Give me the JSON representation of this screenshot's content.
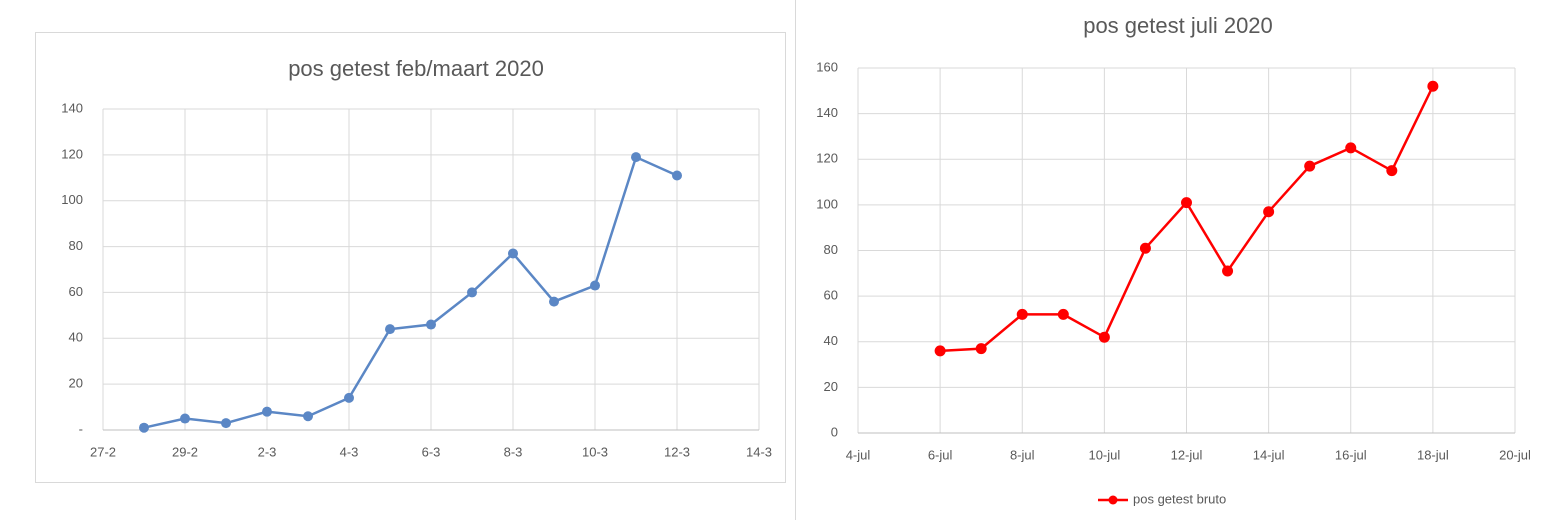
{
  "chart_data": [
    {
      "type": "line",
      "title": "pos getest feb/maart 2020",
      "categories": [
        "27-2",
        null,
        "29-2",
        null,
        "2-3",
        null,
        "4-3",
        null,
        "6-3",
        null,
        "8-3",
        null,
        "10-3",
        null,
        "12-3",
        null,
        "14-3"
      ],
      "series": [
        {
          "color": "#5b87c5",
          "values": [
            null,
            1,
            5,
            3,
            8,
            6,
            14,
            44,
            46,
            60,
            77,
            56,
            63,
            119,
            111,
            null,
            null
          ]
        }
      ],
      "ylim": [
        0,
        140
      ],
      "yticks": [
        {
          "value": 0,
          "label": "-"
        },
        20,
        40,
        60,
        80,
        100,
        120,
        140
      ],
      "grid": true
    },
    {
      "type": "line",
      "title": "pos getest juli 2020",
      "categories": [
        "4-jul",
        null,
        "6-jul",
        null,
        "8-jul",
        null,
        "10-jul",
        null,
        "12-jul",
        null,
        "14-jul",
        null,
        "16-jul",
        null,
        "18-jul",
        null,
        "20-jul"
      ],
      "series": [
        {
          "name": "pos getest bruto",
          "color": "#ff0000",
          "values": [
            null,
            null,
            36,
            37,
            52,
            52,
            42,
            81,
            101,
            71,
            97,
            117,
            125,
            115,
            152,
            null,
            null
          ]
        }
      ],
      "ylim": [
        0,
        160
      ],
      "yticks": [
        0,
        20,
        40,
        60,
        80,
        100,
        120,
        140,
        160
      ],
      "grid": true,
      "legend": "bottom"
    }
  ]
}
